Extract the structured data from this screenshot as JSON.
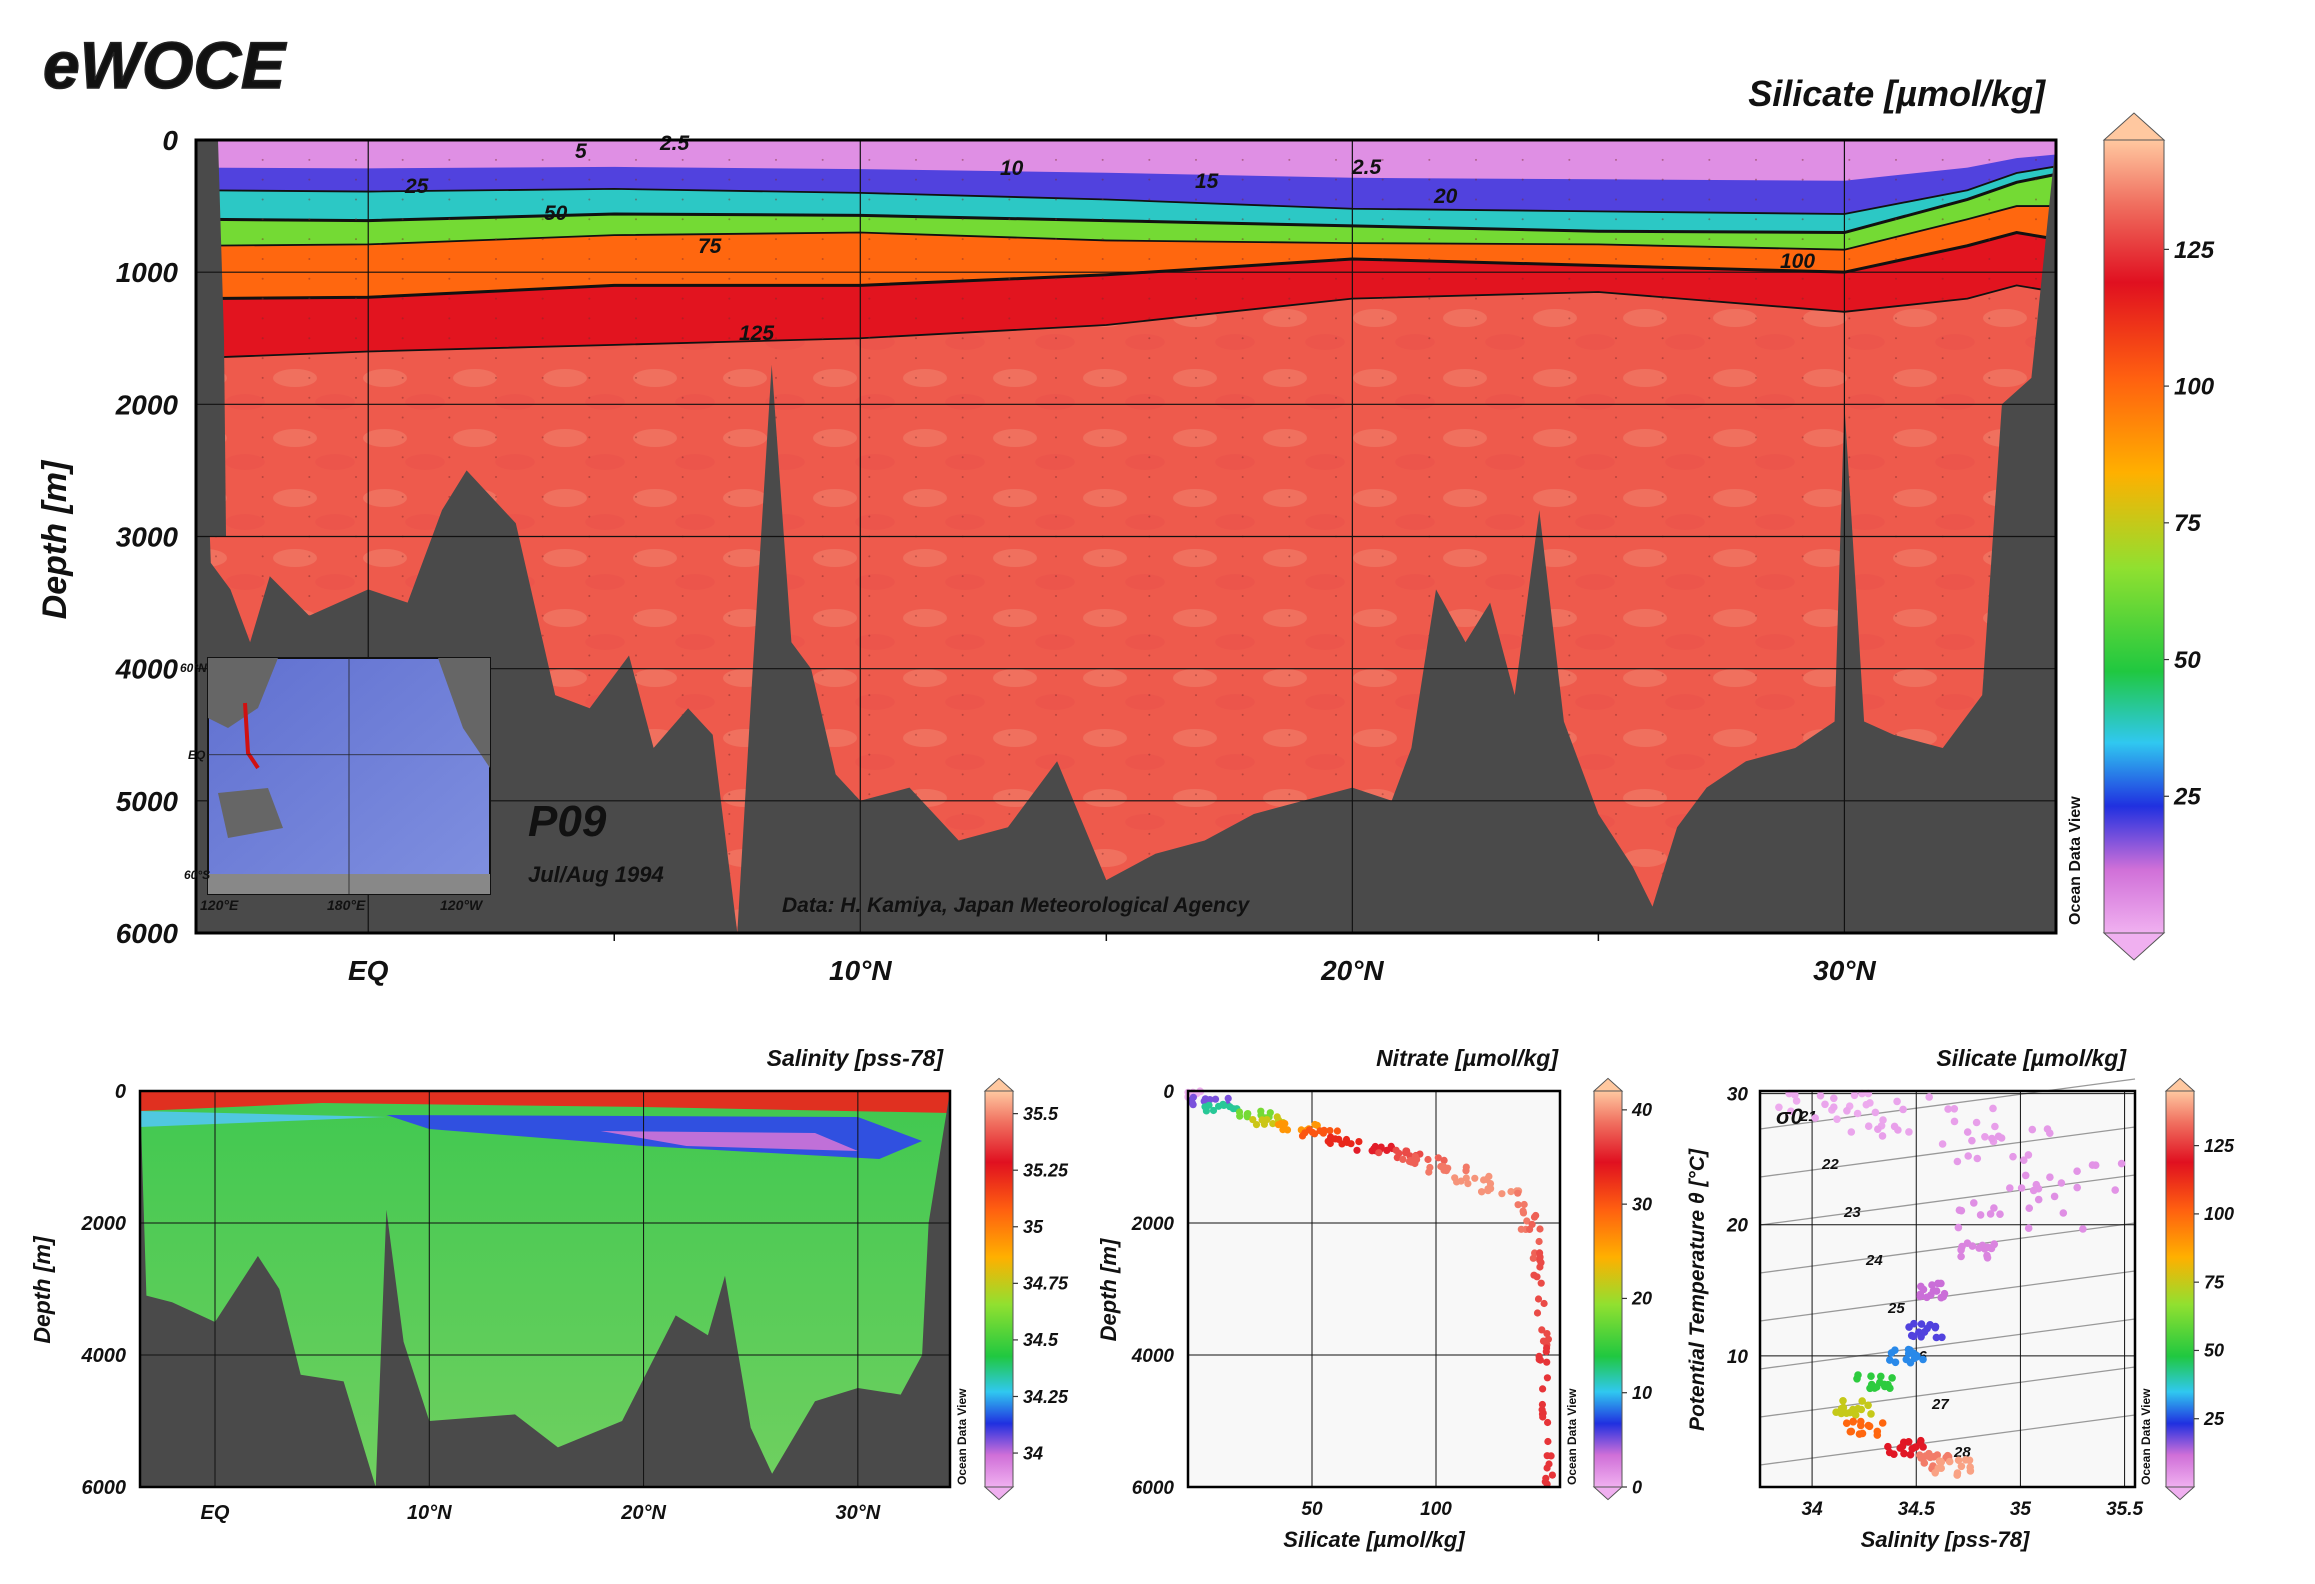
{
  "logo": "eWOCE",
  "main": {
    "title": "Silicate [µmol/kg]",
    "ylabel": "Depth [m]",
    "section": "P09",
    "period": "Jul/Aug 1994",
    "credit": "Data: H. Kamiya, Japan Meteorological Agency",
    "watermark": "Ocean Data View",
    "contour_labels": [
      "2.5",
      "5",
      "10",
      "15",
      "2.5",
      "20",
      "25",
      "50",
      "75",
      "100",
      "125"
    ],
    "inset_labels": [
      "60°N",
      "EQ",
      "60°S",
      "120°E",
      "180°E",
      "120°W"
    ]
  },
  "salinity": {
    "title": "Salinity [pss-78]",
    "ylabel": "Depth [m]",
    "watermark": "Ocean Data View"
  },
  "nitrate": {
    "title": "Nitrate [µmol/kg]",
    "xlabel": "Silicate [µmol/kg]",
    "ylabel": "Depth [m]",
    "watermark": "Ocean Data View"
  },
  "ts": {
    "title": "Silicate [µmol/kg]",
    "xlabel": "Salinity [pss-78]",
    "ylabel": "Potential Temperature θ [°C]",
    "sigma": "σ0",
    "watermark": "Ocean Data View"
  },
  "colors": {
    "land": "#4a4a4a",
    "frame": "#000000"
  },
  "chart_data": [
    {
      "type": "heatmap",
      "title": "Silicate [µmol/kg]",
      "ylabel": "Depth [m]",
      "x_ticks": [
        "EQ",
        "10°N",
        "20°N",
        "30°N"
      ],
      "x_tick_values": [
        0,
        10,
        20,
        30
      ],
      "xlim": [
        -3.5,
        34.3
      ],
      "y_ticks": [
        0,
        1000,
        2000,
        3000,
        4000,
        5000,
        6000
      ],
      "ylim": [
        6000,
        0
      ],
      "colorbar": {
        "ticks": [
          25,
          50,
          75,
          100,
          125
        ],
        "range": [
          0,
          145
        ]
      },
      "profile_lat": [
        -3.5,
        0,
        5,
        10,
        15,
        20,
        25,
        30,
        32.5,
        33.5,
        34.3
      ],
      "isolines": [
        {
          "value": 25,
          "depth": [
            380,
            390,
            370,
            400,
            450,
            520,
            540,
            560,
            380,
            250,
            200
          ]
        },
        {
          "value": 50,
          "depth": [
            600,
            610,
            560,
            570,
            610,
            650,
            690,
            700,
            450,
            320,
            260
          ]
        },
        {
          "value": 75,
          "depth": [
            800,
            790,
            720,
            700,
            760,
            780,
            790,
            830,
            600,
            500,
            500
          ]
        },
        {
          "value": 100,
          "depth": [
            1200,
            1190,
            1100,
            1100,
            1020,
            900,
            950,
            1000,
            800,
            700,
            750
          ]
        },
        {
          "value": 125,
          "depth": [
            1650,
            1600,
            1550,
            1500,
            1400,
            1200,
            1150,
            1300,
            1200,
            1100,
            1150
          ]
        }
      ],
      "bottom_depth": [
        3100,
        3200,
        2600,
        4100,
        4800,
        5600,
        5500,
        5000,
        4900,
        5700,
        4600,
        4800,
        2000
      ],
      "bottom_lat": [
        -3.5,
        0,
        2,
        4,
        7.5,
        12,
        16,
        20,
        24,
        26,
        30,
        32,
        33.5
      ]
    },
    {
      "type": "heatmap",
      "title": "Salinity [pss-78]",
      "ylabel": "Depth [m]",
      "x_ticks": [
        "EQ",
        "10°N",
        "20°N",
        "30°N"
      ],
      "x_tick_values": [
        0,
        10,
        20,
        30
      ],
      "y_ticks": [
        0,
        2000,
        4000,
        6000
      ],
      "ylim": [
        6000,
        0
      ],
      "colorbar": {
        "ticks": [
          34,
          34.25,
          34.5,
          34.75,
          35,
          35.25,
          35.5
        ],
        "range": [
          33.85,
          35.6
        ]
      }
    },
    {
      "type": "scatter",
      "title": "Nitrate [µmol/kg]",
      "xlabel": "Silicate [µmol/kg]",
      "ylabel": "Depth [m]",
      "x_ticks": [
        50,
        100
      ],
      "xlim": [
        0,
        150
      ],
      "y_ticks": [
        0,
        2000,
        4000,
        6000
      ],
      "ylim": [
        6000,
        0
      ],
      "colorbar": {
        "ticks": [
          0,
          10,
          20,
          30,
          40
        ],
        "range": [
          0,
          42
        ]
      },
      "silicate": [
        2,
        8,
        15,
        25,
        35,
        45,
        55,
        65,
        75,
        85,
        95,
        105,
        115,
        125,
        135,
        140,
        142,
        143,
        144,
        145,
        145
      ],
      "depth": [
        50,
        150,
        250,
        350,
        450,
        550,
        650,
        750,
        850,
        950,
        1050,
        1200,
        1350,
        1500,
        1800,
        2200,
        2800,
        3500,
        4200,
        5000,
        5700
      ],
      "nitrate": [
        0,
        5,
        12,
        18,
        22,
        26,
        30,
        33,
        35,
        37,
        38,
        39,
        40,
        40,
        39,
        38,
        37,
        37,
        36,
        36,
        36
      ]
    },
    {
      "type": "scatter",
      "title": "Silicate [µmol/kg]",
      "xlabel": "Salinity [pss-78]",
      "ylabel": "Potential Temperature θ [°C]",
      "x_ticks": [
        34,
        34.5,
        35,
        35.5
      ],
      "xlim": [
        33.75,
        35.55
      ],
      "y_ticks": [
        10,
        20,
        30
      ],
      "ylim": [
        0,
        30.2
      ],
      "colorbar": {
        "ticks": [
          25,
          50,
          75,
          100,
          125
        ],
        "range": [
          0,
          145
        ]
      },
      "sigma_isolines": [
        "21",
        "22",
        "23",
        "24",
        "25",
        "26",
        "27",
        "28"
      ],
      "salinity": [
        34.0,
        34.3,
        34.6,
        34.9,
        35.2,
        35.0,
        34.8,
        34.6,
        34.55,
        34.45,
        34.3,
        34.2,
        34.25,
        34.45,
        34.6,
        34.68
      ],
      "theta": [
        29.5,
        28.5,
        27.5,
        26,
        24,
        21,
        18,
        15,
        12,
        10,
        8,
        6,
        4.5,
        3,
        2,
        1.5
      ],
      "silicate": [
        1,
        2,
        3,
        4,
        5,
        6,
        8,
        12,
        20,
        30,
        50,
        75,
        100,
        120,
        135,
        140
      ]
    }
  ]
}
